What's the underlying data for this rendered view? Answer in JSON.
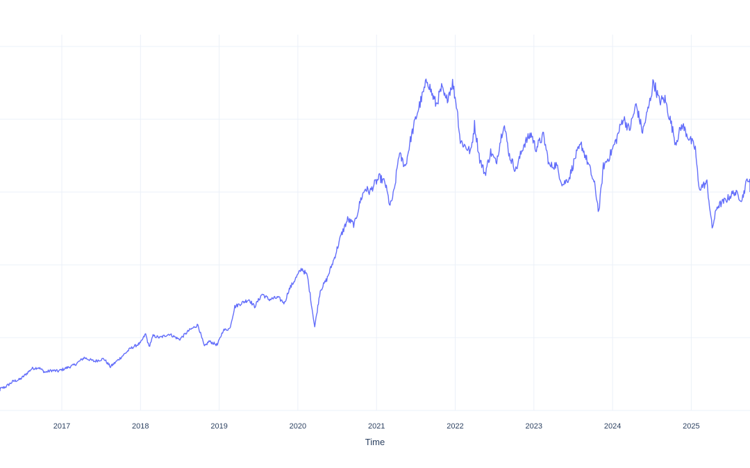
{
  "chart_data": {
    "type": "line",
    "title": "",
    "xlabel": "Time",
    "ylabel": "",
    "x_tick_labels": [
      "2017",
      "2018",
      "2019",
      "2020",
      "2021",
      "2022",
      "2023",
      "2024",
      "2025"
    ],
    "y_ticks_count": 6,
    "grid": true,
    "legend": "none",
    "colors": {
      "line": "#636efa",
      "grid": "#ebf0f8",
      "text": "#2a3f5f",
      "background": "#ffffff"
    },
    "x_range": [
      "2016-03-01",
      "2025-10-15"
    ],
    "y_range": [
      0,
      100
    ],
    "series": [
      {
        "name": "",
        "points": [
          [
            "2016-03-01",
            5.5
          ],
          [
            "2016-04-15",
            6.5
          ],
          [
            "2016-05-20",
            8.0
          ],
          [
            "2016-06-20",
            8.5
          ],
          [
            "2016-07-10",
            9.5
          ],
          [
            "2016-08-15",
            11.5
          ],
          [
            "2016-09-15",
            11.8
          ],
          [
            "2016-10-15",
            10.5
          ],
          [
            "2016-11-15",
            11.0
          ],
          [
            "2016-12-15",
            10.8
          ],
          [
            "2017-01-15",
            11.5
          ],
          [
            "2017-03-01",
            12.5
          ],
          [
            "2017-04-15",
            14.5
          ],
          [
            "2017-06-01",
            13.5
          ],
          [
            "2017-07-15",
            14.2
          ],
          [
            "2017-08-15",
            12.0
          ],
          [
            "2017-10-01",
            14.5
          ],
          [
            "2017-11-15",
            17.0
          ],
          [
            "2018-01-01",
            18.5
          ],
          [
            "2018-01-25",
            21.0
          ],
          [
            "2018-02-10",
            17.5
          ],
          [
            "2018-03-01",
            20.5
          ],
          [
            "2018-04-01",
            20.0
          ],
          [
            "2018-05-15",
            21.0
          ],
          [
            "2018-07-01",
            19.5
          ],
          [
            "2018-08-15",
            22.0
          ],
          [
            "2018-09-25",
            23.5
          ],
          [
            "2018-10-25",
            17.5
          ],
          [
            "2018-11-15",
            19.0
          ],
          [
            "2018-12-24",
            18.0
          ],
          [
            "2019-01-20",
            22.0
          ],
          [
            "2019-02-20",
            22.5
          ],
          [
            "2019-03-15",
            28.5
          ],
          [
            "2019-04-15",
            29.5
          ],
          [
            "2019-05-20",
            30.5
          ],
          [
            "2019-06-15",
            28.5
          ],
          [
            "2019-07-20",
            32.0
          ],
          [
            "2019-08-20",
            30.5
          ],
          [
            "2019-10-01",
            31.0
          ],
          [
            "2019-11-01",
            29.5
          ],
          [
            "2019-11-20",
            33.0
          ],
          [
            "2019-12-20",
            36.0
          ],
          [
            "2020-01-20",
            39.0
          ],
          [
            "2020-02-15",
            37.0
          ],
          [
            "2020-03-20",
            23.0
          ],
          [
            "2020-04-15",
            33.0
          ],
          [
            "2020-05-15",
            36.0
          ],
          [
            "2020-06-20",
            42.0
          ],
          [
            "2020-07-20",
            48.0
          ],
          [
            "2020-08-20",
            52.5
          ],
          [
            "2020-09-20",
            51.0
          ],
          [
            "2020-10-20",
            58.0
          ],
          [
            "2020-11-10",
            61.0
          ],
          [
            "2020-12-01",
            60.0
          ],
          [
            "2020-12-20",
            62.0
          ],
          [
            "2021-01-15",
            64.0
          ],
          [
            "2021-02-10",
            62.5
          ],
          [
            "2021-03-05",
            56.0
          ],
          [
            "2021-03-25",
            60.5
          ],
          [
            "2021-04-15",
            70.5
          ],
          [
            "2021-05-15",
            67.0
          ],
          [
            "2021-06-10",
            75.0
          ],
          [
            "2021-07-10",
            82.0
          ],
          [
            "2021-08-10",
            88.0
          ],
          [
            "2021-08-25",
            91.0
          ],
          [
            "2021-09-15",
            87.0
          ],
          [
            "2021-10-05",
            84.0
          ],
          [
            "2021-10-30",
            88.5
          ],
          [
            "2021-11-20",
            85.0
          ],
          [
            "2021-12-20",
            90.0
          ],
          [
            "2022-01-10",
            83.0
          ],
          [
            "2022-01-25",
            74.0
          ],
          [
            "2022-03-15",
            71.0
          ],
          [
            "2022-04-01",
            78.5
          ],
          [
            "2022-04-25",
            69.0
          ],
          [
            "2022-05-20",
            65.0
          ],
          [
            "2022-06-15",
            71.0
          ],
          [
            "2022-07-10",
            68.0
          ],
          [
            "2022-08-15",
            79.0
          ],
          [
            "2022-09-10",
            70.0
          ],
          [
            "2022-10-10",
            66.0
          ],
          [
            "2022-11-15",
            73.0
          ],
          [
            "2022-12-20",
            76.0
          ],
          [
            "2023-01-10",
            72.0
          ],
          [
            "2023-02-15",
            75.5
          ],
          [
            "2023-03-15",
            67.0
          ],
          [
            "2023-04-15",
            67.5
          ],
          [
            "2023-05-15",
            62.0
          ],
          [
            "2023-06-15",
            64.0
          ],
          [
            "2023-07-15",
            70.0
          ],
          [
            "2023-08-10",
            73.0
          ],
          [
            "2023-09-15",
            67.0
          ],
          [
            "2023-10-10",
            62.0
          ],
          [
            "2023-10-30",
            54.5
          ],
          [
            "2023-11-20",
            67.0
          ],
          [
            "2023-12-20",
            70.0
          ],
          [
            "2024-01-20",
            74.5
          ],
          [
            "2024-02-20",
            80.5
          ],
          [
            "2024-03-20",
            77.0
          ],
          [
            "2024-04-20",
            84.0
          ],
          [
            "2024-05-20",
            76.5
          ],
          [
            "2024-06-20",
            84.0
          ],
          [
            "2024-07-10",
            90.5
          ],
          [
            "2024-08-05",
            85.0
          ],
          [
            "2024-09-01",
            85.5
          ],
          [
            "2024-10-01",
            78.5
          ],
          [
            "2024-10-20",
            73.5
          ],
          [
            "2024-11-20",
            78.5
          ],
          [
            "2024-12-20",
            75.0
          ],
          [
            "2025-01-20",
            72.0
          ],
          [
            "2025-02-05",
            61.0
          ],
          [
            "2025-03-15",
            62.5
          ],
          [
            "2025-04-08",
            50.0
          ],
          [
            "2025-05-01",
            56.0
          ],
          [
            "2025-06-15",
            58.0
          ],
          [
            "2025-07-20",
            60.0
          ],
          [
            "2025-08-25",
            58.0
          ],
          [
            "2025-09-20",
            64.0
          ],
          [
            "2025-10-15",
            60.0
          ]
        ]
      }
    ]
  }
}
